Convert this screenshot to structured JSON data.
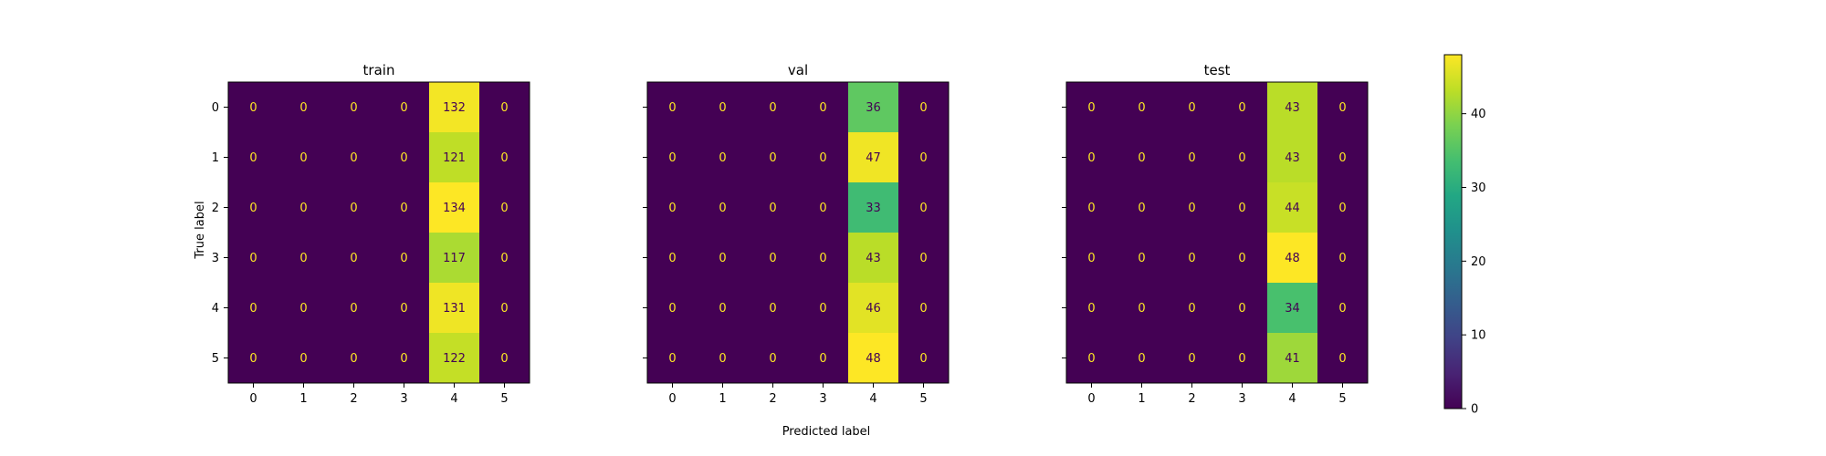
{
  "chart_data": {
    "type": "heatmap",
    "xlabel": "Predicted label",
    "ylabel": "True label",
    "labels": [
      "0",
      "1",
      "2",
      "3",
      "4",
      "5"
    ],
    "colorbar": {
      "cmap": "viridis",
      "range": [
        0,
        48
      ],
      "ticks": [
        "0",
        "10",
        "20",
        "30",
        "40"
      ]
    },
    "panels": [
      {
        "title": "train",
        "matrix": [
          [
            0,
            0,
            0,
            0,
            132,
            0
          ],
          [
            0,
            0,
            0,
            0,
            121,
            0
          ],
          [
            0,
            0,
            0,
            0,
            134,
            0
          ],
          [
            0,
            0,
            0,
            0,
            117,
            0
          ],
          [
            0,
            0,
            0,
            0,
            131,
            0
          ],
          [
            0,
            0,
            0,
            0,
            122,
            0
          ]
        ]
      },
      {
        "title": "val",
        "matrix": [
          [
            0,
            0,
            0,
            0,
            36,
            0
          ],
          [
            0,
            0,
            0,
            0,
            47,
            0
          ],
          [
            0,
            0,
            0,
            0,
            33,
            0
          ],
          [
            0,
            0,
            0,
            0,
            43,
            0
          ],
          [
            0,
            0,
            0,
            0,
            46,
            0
          ],
          [
            0,
            0,
            0,
            0,
            48,
            0
          ]
        ]
      },
      {
        "title": "test",
        "matrix": [
          [
            0,
            0,
            0,
            0,
            43,
            0
          ],
          [
            0,
            0,
            0,
            0,
            43,
            0
          ],
          [
            0,
            0,
            0,
            0,
            44,
            0
          ],
          [
            0,
            0,
            0,
            0,
            48,
            0
          ],
          [
            0,
            0,
            0,
            0,
            34,
            0
          ],
          [
            0,
            0,
            0,
            0,
            41,
            0
          ]
        ]
      }
    ]
  }
}
